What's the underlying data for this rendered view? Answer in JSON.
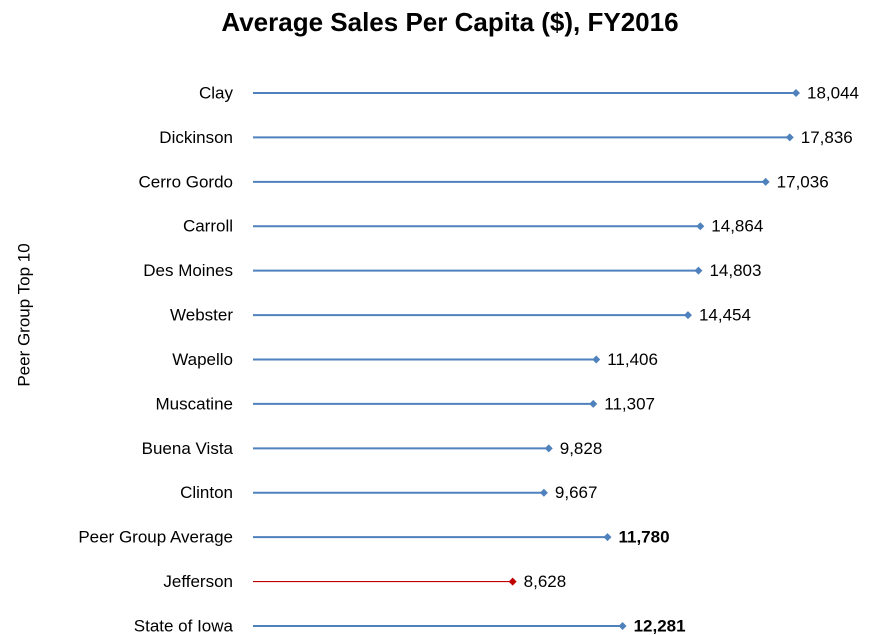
{
  "chart_data": {
    "type": "lollipop",
    "title": "Average Sales Per Capita ($), FY2016",
    "y_label": "Peer Group Top 10",
    "categories": [
      "Clay",
      "Dickinson",
      "Cerro Gordo",
      "Carroll",
      "Des Moines",
      "Webster",
      "Wapello",
      "Muscatine",
      "Buena Vista",
      "Clinton",
      "Peer Group Average",
      "Jefferson",
      "State of Iowa"
    ],
    "values": [
      18044,
      17836,
      17036,
      14864,
      14803,
      14454,
      11406,
      11307,
      9828,
      9667,
      11780,
      8628,
      12281
    ],
    "value_labels": [
      "18,044",
      "17,836",
      "17,036",
      "14,864",
      "14,803",
      "14,454",
      "11,406",
      "11,307",
      "9,828",
      "9,667",
      "11,780",
      "8,628",
      "12,281"
    ],
    "colors": [
      "#4f81bd",
      "#4f81bd",
      "#4f81bd",
      "#4f81bd",
      "#4f81bd",
      "#4f81bd",
      "#4f81bd",
      "#4f81bd",
      "#4f81bd",
      "#4f81bd",
      "#4f81bd",
      "#c00000",
      "#4f81bd"
    ]
  }
}
